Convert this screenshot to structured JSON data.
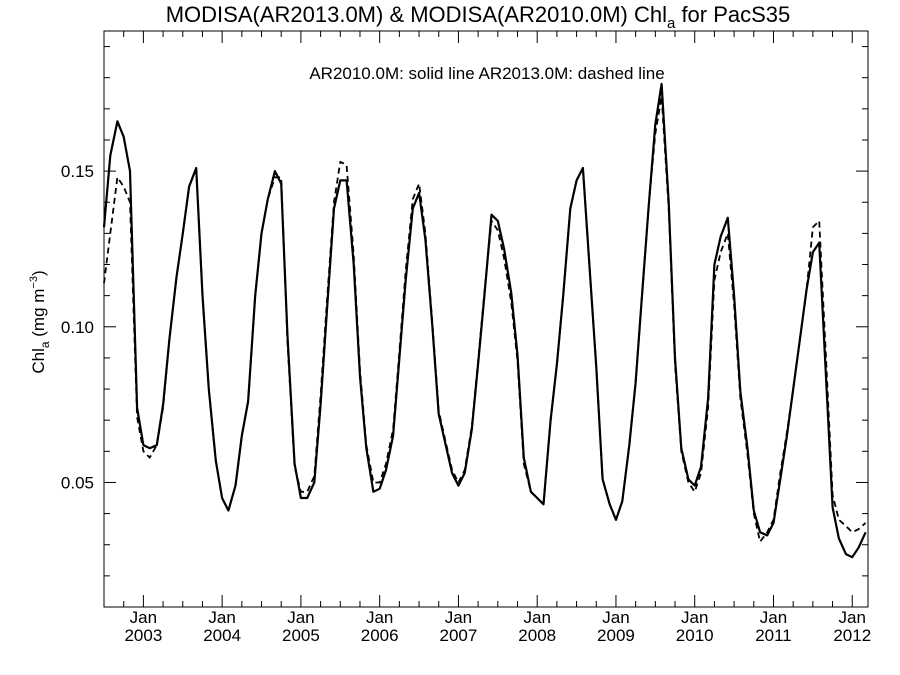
{
  "chart_data": {
    "type": "line",
    "title_main": "MODISA(AR2013.0M) & MODISA(AR2010.0M)  Chl",
    "title_sub": "a",
    "title_tail": " for PacS35",
    "ylabel_main": "Chl",
    "ylabel_sub": "a",
    "ylabel_unit": " (mg m",
    "ylabel_sup": "−3",
    "ylabel_close": ")",
    "annotation": "AR2010.0M: solid line   AR2013.0M: dashed line",
    "xlim": [
      2002.5,
      2012.2
    ],
    "ylim": [
      0.01,
      0.195
    ],
    "y_ticks": [
      0.05,
      0.1,
      0.15
    ],
    "y_tick_labels": [
      "0.05",
      "0.10",
      "0.15"
    ],
    "x_ticks": [
      {
        "month": "Jan",
        "year": "2003",
        "t": 2003.0
      },
      {
        "month": "Jan",
        "year": "2004",
        "t": 2004.0
      },
      {
        "month": "Jan",
        "year": "2005",
        "t": 2005.0
      },
      {
        "month": "Jan",
        "year": "2006",
        "t": 2006.0
      },
      {
        "month": "Jan",
        "year": "2007",
        "t": 2007.0
      },
      {
        "month": "Jan",
        "year": "2008",
        "t": 2008.0
      },
      {
        "month": "Jan",
        "year": "2009",
        "t": 2009.0
      },
      {
        "month": "Jan",
        "year": "2010",
        "t": 2010.0
      },
      {
        "month": "Jan",
        "year": "2011",
        "t": 2011.0
      },
      {
        "month": "Jan",
        "year": "2012",
        "t": 2012.0
      }
    ],
    "grid": false,
    "series": [
      {
        "name": "AR2010.0M",
        "style": "solid",
        "color": "#000000",
        "x": [
          2002.5,
          2002.58,
          2002.67,
          2002.75,
          2002.83,
          2002.92,
          2003.0,
          2003.08,
          2003.17,
          2003.25,
          2003.33,
          2003.42,
          2003.5,
          2003.58,
          2003.67,
          2003.75,
          2003.83,
          2003.92,
          2004.0,
          2004.08,
          2004.17,
          2004.25,
          2004.33,
          2004.42,
          2004.5,
          2004.58,
          2004.67,
          2004.75,
          2004.83,
          2004.92,
          2005.0,
          2005.08,
          2005.17,
          2005.25,
          2005.33,
          2005.42,
          2005.5,
          2005.58,
          2005.67,
          2005.75,
          2005.83,
          2005.92,
          2006.0,
          2006.08,
          2006.17,
          2006.25,
          2006.33,
          2006.42,
          2006.5,
          2006.58,
          2006.67,
          2006.75,
          2006.83,
          2006.92,
          2007.0,
          2007.08,
          2007.17,
          2007.25,
          2007.33,
          2007.42,
          2007.5,
          2007.58,
          2007.67,
          2007.75,
          2007.83,
          2007.92,
          2008.0,
          2008.08,
          2008.17,
          2008.25,
          2008.33,
          2008.42,
          2008.5,
          2008.58,
          2008.67,
          2008.75,
          2008.83,
          2008.92,
          2009.0,
          2009.08,
          2009.17,
          2009.25,
          2009.33,
          2009.42,
          2009.5,
          2009.58,
          2009.67,
          2009.75,
          2009.83,
          2009.92,
          2010.0,
          2010.08,
          2010.17,
          2010.25,
          2010.33,
          2010.42,
          2010.5,
          2010.58,
          2010.67,
          2010.75,
          2010.83,
          2010.92,
          2011.0,
          2011.08,
          2011.17,
          2011.25,
          2011.33,
          2011.42,
          2011.5,
          2011.58,
          2011.67,
          2011.75,
          2011.83,
          2011.92,
          2012.0,
          2012.08,
          2012.17
        ],
        "y": [
          0.132,
          0.155,
          0.166,
          0.161,
          0.15,
          0.074,
          0.062,
          0.061,
          0.062,
          0.075,
          0.096,
          0.116,
          0.13,
          0.145,
          0.151,
          0.11,
          0.08,
          0.057,
          0.045,
          0.041,
          0.049,
          0.065,
          0.076,
          0.11,
          0.13,
          0.141,
          0.15,
          0.146,
          0.097,
          0.056,
          0.045,
          0.045,
          0.05,
          0.075,
          0.105,
          0.138,
          0.147,
          0.147,
          0.12,
          0.084,
          0.061,
          0.047,
          0.048,
          0.054,
          0.065,
          0.09,
          0.115,
          0.138,
          0.143,
          0.128,
          0.1,
          0.072,
          0.063,
          0.053,
          0.049,
          0.053,
          0.067,
          0.088,
          0.11,
          0.136,
          0.134,
          0.125,
          0.111,
          0.091,
          0.058,
          0.047,
          0.045,
          0.043,
          0.07,
          0.088,
          0.11,
          0.138,
          0.147,
          0.151,
          0.117,
          0.087,
          0.051,
          0.043,
          0.038,
          0.044,
          0.062,
          0.082,
          0.11,
          0.14,
          0.165,
          0.178,
          0.14,
          0.09,
          0.061,
          0.051,
          0.049,
          0.055,
          0.077,
          0.12,
          0.129,
          0.135,
          0.11,
          0.079,
          0.061,
          0.041,
          0.034,
          0.033,
          0.037,
          0.05,
          0.065,
          0.08,
          0.095,
          0.112,
          0.124,
          0.127,
          0.082,
          0.042,
          0.032,
          0.027,
          0.026,
          0.029,
          0.034
        ]
      },
      {
        "name": "AR2013.0M",
        "style": "dashed",
        "color": "#000000",
        "x": [
          2002.5,
          2002.58,
          2002.67,
          2002.75,
          2002.83,
          2002.92,
          2003.0,
          2003.08,
          2003.17,
          2003.25,
          2003.33,
          2003.42,
          2003.5,
          2003.58,
          2003.67,
          2003.75,
          2003.83,
          2003.92,
          2004.0,
          2004.08,
          2004.17,
          2004.25,
          2004.33,
          2004.42,
          2004.5,
          2004.58,
          2004.67,
          2004.75,
          2004.83,
          2004.92,
          2005.0,
          2005.08,
          2005.17,
          2005.25,
          2005.33,
          2005.42,
          2005.5,
          2005.58,
          2005.67,
          2005.75,
          2005.83,
          2005.92,
          2006.0,
          2006.08,
          2006.17,
          2006.25,
          2006.33,
          2006.42,
          2006.5,
          2006.58,
          2006.67,
          2006.75,
          2006.83,
          2006.92,
          2007.0,
          2007.08,
          2007.17,
          2007.25,
          2007.33,
          2007.42,
          2007.5,
          2007.58,
          2007.67,
          2007.75,
          2007.83,
          2007.92,
          2008.0,
          2008.08,
          2008.17,
          2008.25,
          2008.33,
          2008.42,
          2008.5,
          2008.58,
          2008.67,
          2008.75,
          2008.83,
          2008.92,
          2009.0,
          2009.08,
          2009.17,
          2009.25,
          2009.33,
          2009.42,
          2009.5,
          2009.58,
          2009.67,
          2009.75,
          2009.83,
          2009.92,
          2010.0,
          2010.08,
          2010.17,
          2010.25,
          2010.33,
          2010.42,
          2010.5,
          2010.58,
          2010.67,
          2010.75,
          2010.83,
          2010.92,
          2011.0,
          2011.08,
          2011.17,
          2011.25,
          2011.33,
          2011.42,
          2011.5,
          2011.58,
          2011.67,
          2011.75,
          2011.83,
          2011.92,
          2012.0,
          2012.08,
          2012.17
        ],
        "y": [
          0.114,
          0.13,
          0.148,
          0.145,
          0.14,
          0.071,
          0.06,
          0.058,
          0.062,
          0.074,
          0.096,
          0.116,
          0.13,
          0.145,
          0.151,
          0.11,
          0.08,
          0.057,
          0.045,
          0.041,
          0.049,
          0.065,
          0.076,
          0.11,
          0.13,
          0.141,
          0.148,
          0.148,
          0.095,
          0.055,
          0.047,
          0.047,
          0.052,
          0.078,
          0.108,
          0.14,
          0.153,
          0.152,
          0.123,
          0.086,
          0.062,
          0.05,
          0.05,
          0.056,
          0.067,
          0.092,
          0.118,
          0.141,
          0.146,
          0.13,
          0.101,
          0.073,
          0.064,
          0.054,
          0.05,
          0.054,
          0.068,
          0.089,
          0.111,
          0.134,
          0.131,
          0.122,
          0.108,
          0.089,
          0.056,
          0.047,
          0.045,
          0.043,
          0.07,
          0.088,
          0.11,
          0.138,
          0.147,
          0.151,
          0.117,
          0.087,
          0.051,
          0.043,
          0.038,
          0.044,
          0.062,
          0.082,
          0.11,
          0.14,
          0.162,
          0.174,
          0.138,
          0.088,
          0.06,
          0.05,
          0.047,
          0.053,
          0.074,
          0.115,
          0.124,
          0.13,
          0.107,
          0.077,
          0.059,
          0.04,
          0.031,
          0.034,
          0.038,
          0.052,
          0.066,
          0.08,
          0.095,
          0.112,
          0.132,
          0.134,
          0.088,
          0.046,
          0.038,
          0.036,
          0.034,
          0.035,
          0.037
        ]
      }
    ]
  }
}
